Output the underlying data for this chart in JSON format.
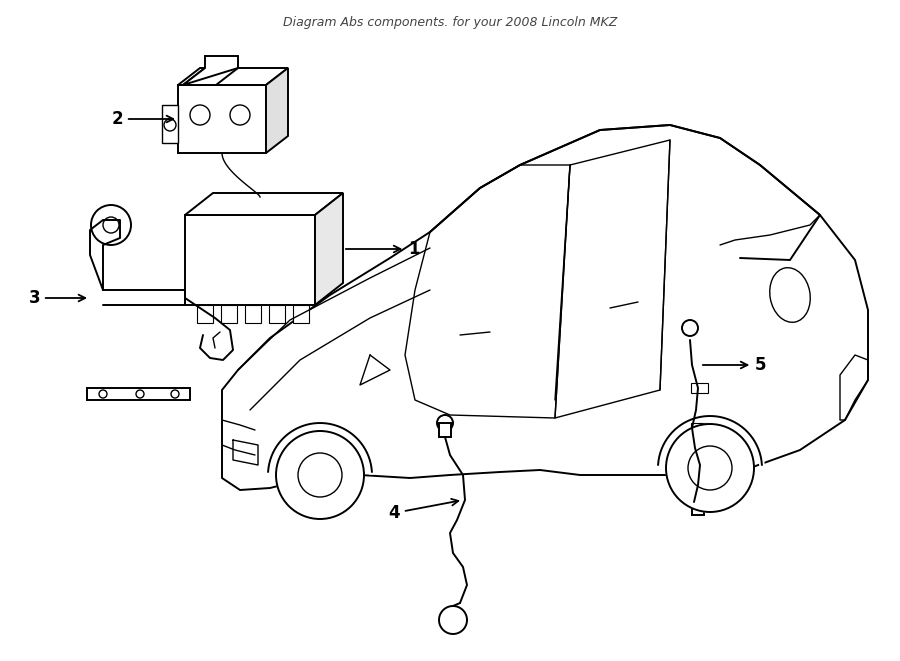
{
  "title": "Diagram Abs components. for your 2008 Lincoln MKZ",
  "background_color": "#ffffff",
  "line_color": "#000000",
  "label_color": "#000000",
  "fig_width": 9.0,
  "fig_height": 6.61,
  "dpi": 100
}
